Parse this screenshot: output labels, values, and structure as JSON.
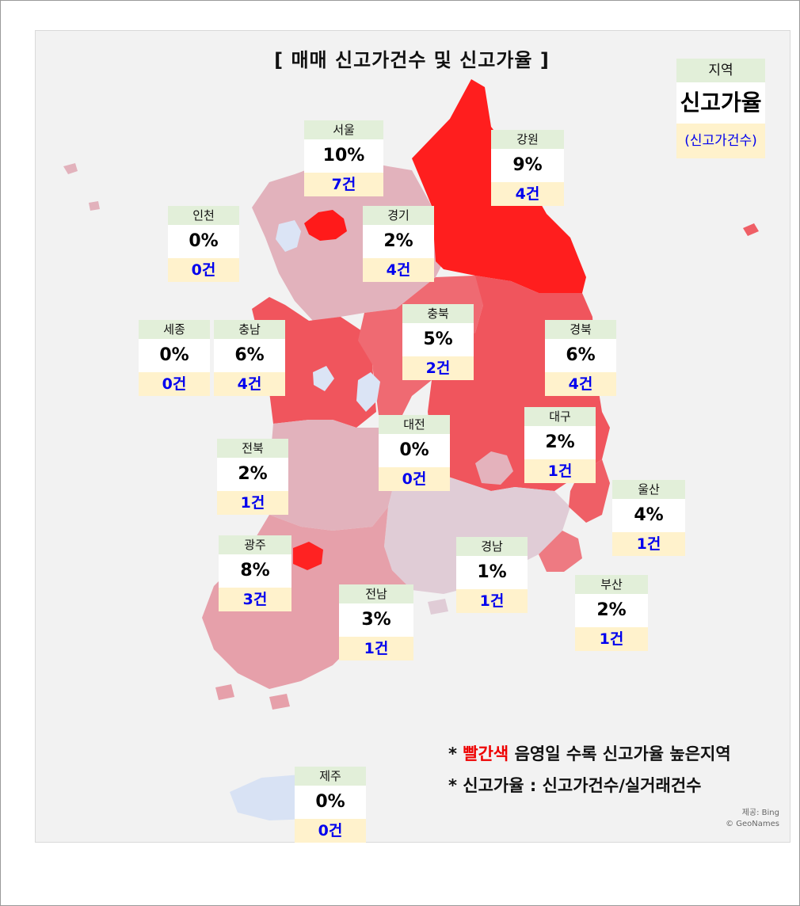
{
  "title": "[ 매매 신고가건수 및 신고가율 ]",
  "legend": {
    "name": "지역",
    "rate": "신고가율",
    "count": "(신고가건수)"
  },
  "regions": [
    {
      "name": "서울",
      "rate": "10%",
      "count": "7건",
      "color": "#ff1a1a"
    },
    {
      "name": "강원",
      "rate": "9%",
      "count": "4건",
      "color": "#ff1e1e"
    },
    {
      "name": "인천",
      "rate": "0%",
      "count": "0건",
      "color": "#dbe4f5"
    },
    {
      "name": "경기",
      "rate": "2%",
      "count": "4건",
      "color": "#e2b2bc"
    },
    {
      "name": "충북",
      "rate": "5%",
      "count": "2건",
      "color": "#ef6a72"
    },
    {
      "name": "세종",
      "rate": "0%",
      "count": "0건",
      "color": "#dbe4f5"
    },
    {
      "name": "충남",
      "rate": "6%",
      "count": "4건",
      "color": "#f0555d"
    },
    {
      "name": "경북",
      "rate": "6%",
      "count": "4건",
      "color": "#f0555d"
    },
    {
      "name": "대구",
      "rate": "2%",
      "count": "1건",
      "color": "#e4b2bc"
    },
    {
      "name": "대전",
      "rate": "0%",
      "count": "0건",
      "color": "#dbe4f5"
    },
    {
      "name": "전북",
      "rate": "2%",
      "count": "1건",
      "color": "#e2b2bc"
    },
    {
      "name": "울산",
      "rate": "4%",
      "count": "1건",
      "color": "#ef5f66"
    },
    {
      "name": "광주",
      "rate": "8%",
      "count": "3건",
      "color": "#ff2222"
    },
    {
      "name": "경남",
      "rate": "1%",
      "count": "1건",
      "color": "#e0ccd6"
    },
    {
      "name": "전남",
      "rate": "3%",
      "count": "1건",
      "color": "#e6a0aa"
    },
    {
      "name": "부산",
      "rate": "2%",
      "count": "1건",
      "color": "#ee7a82"
    },
    {
      "name": "제주",
      "rate": "0%",
      "count": "0건",
      "color": "#d8e2f4"
    }
  ],
  "notes": {
    "line1_prefix": "* ",
    "line1_red": "빨간색",
    "line1_rest": " 음영일 수록 신고가율 높은지역",
    "line2": "* 신고가율 : 신고가건수/실거래건수"
  },
  "credit": {
    "line1": "제공: Bing",
    "line2": "© GeoNames"
  }
}
